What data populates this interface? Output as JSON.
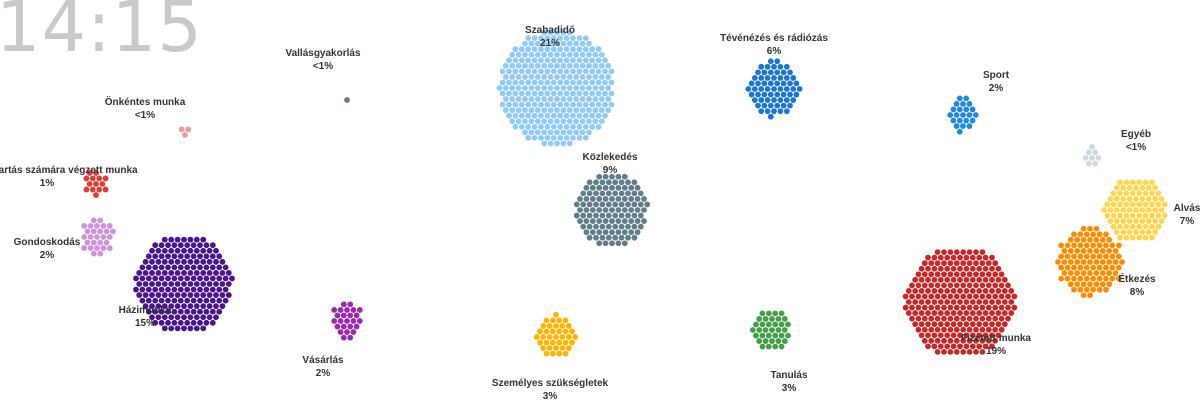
{
  "clock": "14:15",
  "chart_data": {
    "type": "scatter",
    "categories": [
      {
        "name": "Szabadidő",
        "pct": "21%",
        "color": "#90caf9",
        "value": 21
      },
      {
        "name": "Tévénézés és rádiózás",
        "pct": "6%",
        "color": "#1976d2",
        "value": 6
      },
      {
        "name": "Sport",
        "pct": "2%",
        "color": "#1e88e5",
        "value": 2
      },
      {
        "name": "Egyéb",
        "pct": "<1%",
        "color": "#cfd8dc",
        "value": 0.5
      },
      {
        "name": "Alvás",
        "pct": "7%",
        "color": "#ffd54f",
        "value": 7
      },
      {
        "name": "Étkezés",
        "pct": "8%",
        "color": "#fb8c00",
        "value": 8
      },
      {
        "name": "Fizetett munka",
        "pct": "19%",
        "color": "#c62828",
        "value": 19
      },
      {
        "name": "Tanulás",
        "pct": "3%",
        "color": "#43a047",
        "value": 3
      },
      {
        "name": "Személyes szükségletek",
        "pct": "3%",
        "color": "#ffb300",
        "value": 3
      },
      {
        "name": "Közlekedés",
        "pct": "9%",
        "color": "#607d8b",
        "value": 9
      },
      {
        "name": "Vásárlás",
        "pct": "2%",
        "color": "#9c27b0",
        "value": 2
      },
      {
        "name": "Házimunka",
        "pct": "15%",
        "color": "#4a148c",
        "value": 15
      },
      {
        "name": "Gondoskodás",
        "pct": "2%",
        "color": "#ce93d8",
        "value": 2
      },
      {
        "name": "Más háztartás számára végzett munka",
        "pct": "1%",
        "color": "#e53935",
        "value": 1
      },
      {
        "name": "Önkéntes munka",
        "pct": "<1%",
        "color": "#ef9a9a",
        "value": 0.5
      },
      {
        "name": "Vallásgyakorlás",
        "pct": "<1%",
        "color": "#8d6e63",
        "value": 0.2
      }
    ]
  }
}
